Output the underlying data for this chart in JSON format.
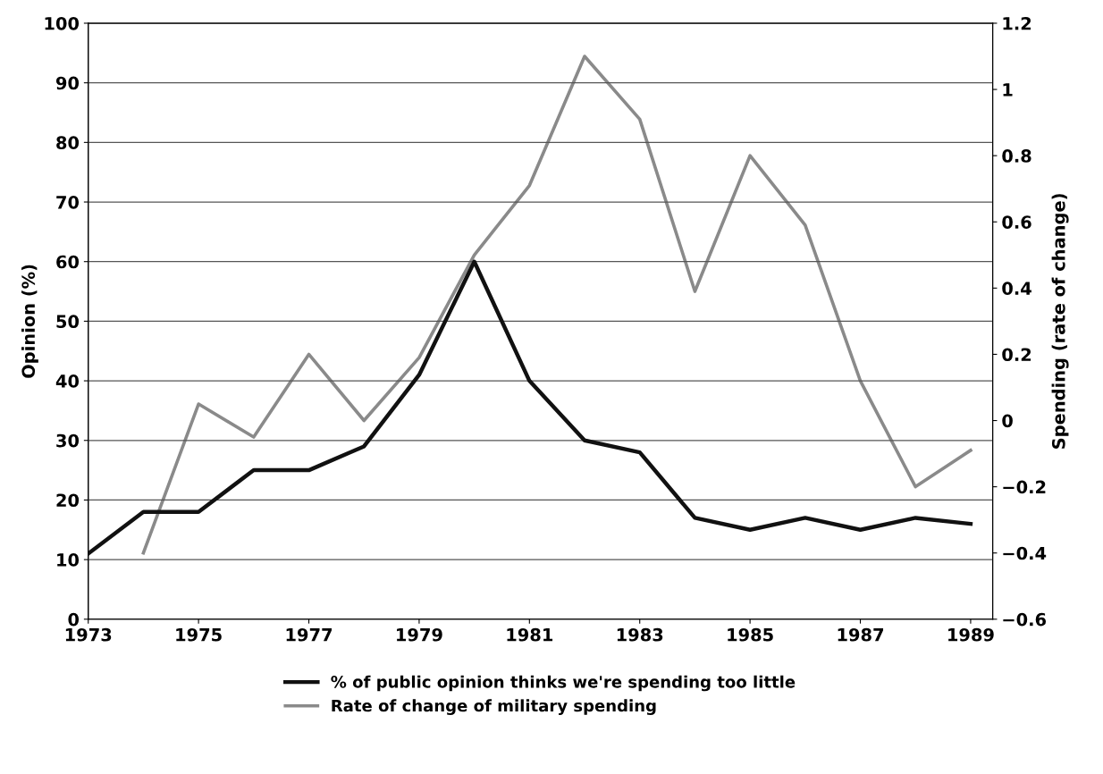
{
  "chart_data": {
    "type": "line",
    "ylabel": "Opinion (%)",
    "y2label": "Spending (rate of change)",
    "xlim": [
      1973,
      1989.4
    ],
    "xticks": [
      1973,
      1975,
      1977,
      1979,
      1981,
      1983,
      1985,
      1987,
      1989
    ],
    "ylim": [
      0,
      100
    ],
    "yticks": [
      0,
      10,
      20,
      30,
      40,
      50,
      60,
      70,
      80,
      90,
      100
    ],
    "y2lim": [
      -0.6,
      1.2
    ],
    "y2ticks": [
      {
        "value": -0.6,
        "label": "−0.6"
      },
      {
        "value": -0.4,
        "label": "−0.4"
      },
      {
        "value": -0.2,
        "label": "−0.2"
      },
      0,
      0.2,
      0.4,
      0.6,
      0.8,
      1,
      1.2
    ],
    "grid": "y",
    "legend": "bottom",
    "marker": "none",
    "line_style": "solid",
    "series": [
      {
        "name": "% of public opinion thinks we're spending too little",
        "color": "#111111",
        "x": [
          1973,
          1974,
          1975,
          1976,
          1977,
          1978,
          1979,
          1980,
          1981,
          1982,
          1983,
          1984,
          1985,
          1986,
          1987,
          1988,
          1989
        ],
        "values": [
          11,
          18,
          18,
          25,
          25,
          29,
          41,
          60,
          40,
          30,
          28,
          17,
          15,
          17,
          15,
          17,
          16
        ]
      },
      {
        "name": "Rate of change of military spending",
        "color": "#8a8a8a",
        "axis": "y2",
        "x": [
          1974,
          1975,
          1976,
          1977,
          1978,
          1979,
          1980,
          1981,
          1982,
          1983,
          1984,
          1985,
          1986,
          1987,
          1988,
          1989
        ],
        "values": [
          -0.4,
          0.05,
          -0.05,
          0.2,
          0.0,
          0.19,
          0.5,
          0.71,
          1.1,
          0.91,
          0.39,
          0.8,
          0.59,
          0.12,
          -0.2,
          -0.09
        ]
      }
    ]
  }
}
